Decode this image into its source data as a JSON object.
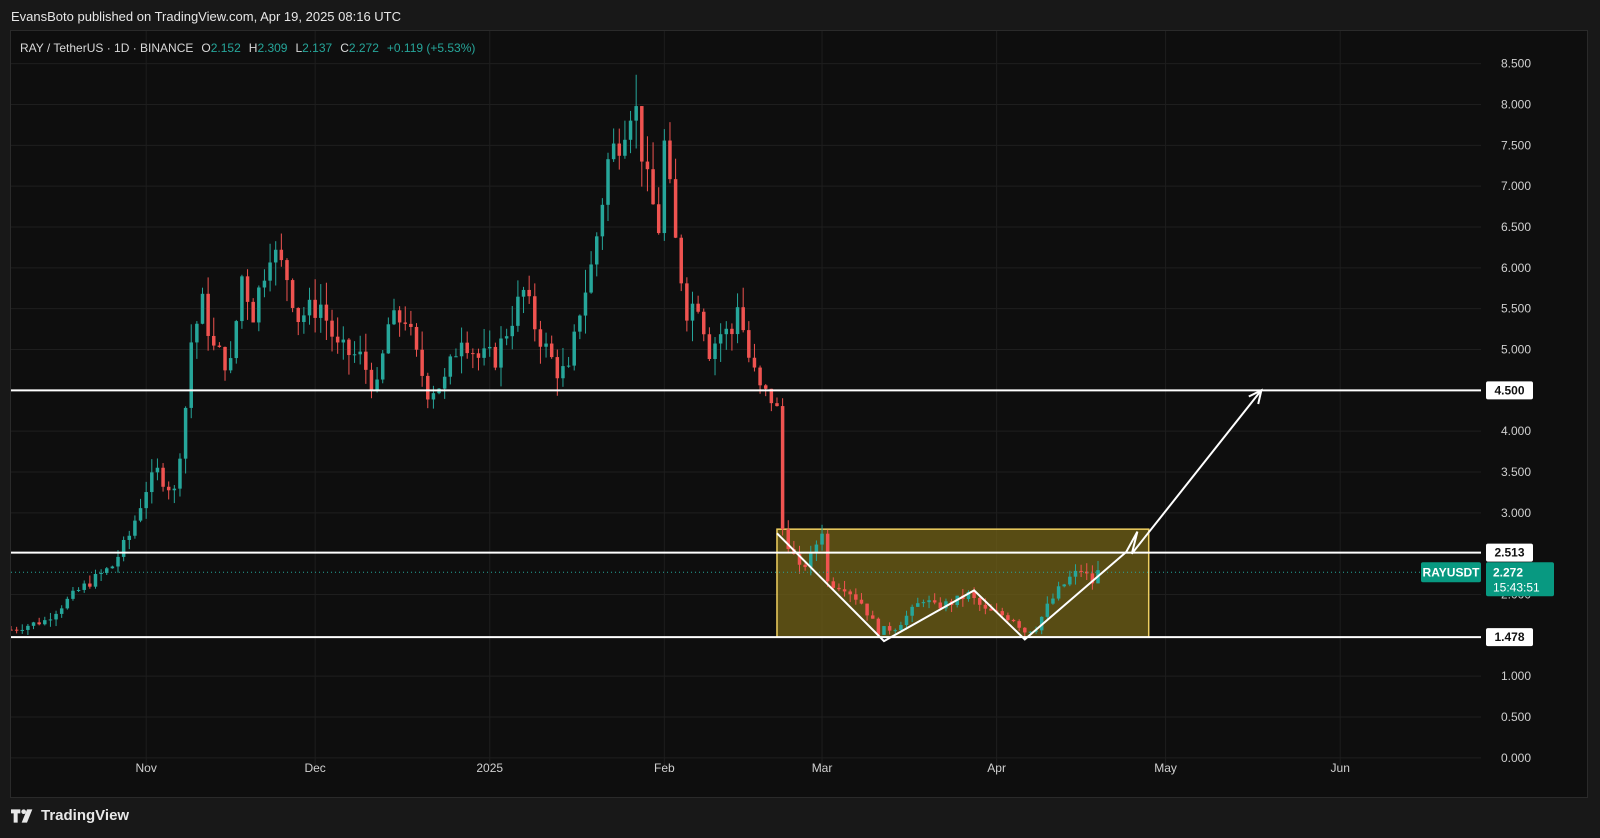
{
  "header": {
    "publish_line": "EvansBoto published on TradingView.com, Apr 19, 2025 08:16 UTC"
  },
  "footer": {
    "brand": "TradingView"
  },
  "colors": {
    "up": "#26a69a",
    "down": "#ef5350",
    "zone_fill": "#6b5d16",
    "zone_border": "#f0d060",
    "grid": "#1e1e1e",
    "level_line": "#ffffff",
    "price_tag": "#089981"
  },
  "chart_data": {
    "type": "candlestick",
    "symbol_line": {
      "name": "RAY / TetherUS · 1D · BINANCE",
      "o_label": "O",
      "o_value": "2.152",
      "h_label": "H",
      "h_value": "2.309",
      "l_label": "L",
      "l_value": "2.137",
      "c_label": "C",
      "c_value": "2.272",
      "change": "+0.119 (+5.53%)"
    },
    "y_ticks": [
      "8.500",
      "8.000",
      "7.500",
      "7.000",
      "6.500",
      "6.000",
      "5.500",
      "5.000",
      "4.000",
      "3.500",
      "3.000",
      "2.000",
      "1.000",
      "0.500",
      "0.000"
    ],
    "ylim": [
      -0.1,
      8.9
    ],
    "x_ticks": [
      {
        "label": "Nov",
        "date": "2024-11-01"
      },
      {
        "label": "Dec",
        "date": "2024-12-01"
      },
      {
        "label": "2025",
        "date": "2025-01-01"
      },
      {
        "label": "Feb",
        "date": "2025-02-01"
      },
      {
        "label": "Mar",
        "date": "2025-03-01"
      },
      {
        "label": "Apr",
        "date": "2025-04-01"
      },
      {
        "label": "May",
        "date": "2025-05-01"
      },
      {
        "label": "Jun",
        "date": "2025-06-01"
      }
    ],
    "xlim": [
      "2024-10-08",
      "2025-06-26"
    ],
    "horizontal_levels": [
      {
        "value": 4.5,
        "label": "4.500"
      },
      {
        "value": 2.513,
        "label": "2.513"
      },
      {
        "value": 1.478,
        "label": "1.478"
      }
    ],
    "current_price": {
      "symbol": "RAYUSDT",
      "value": 2.272,
      "label": "2.272",
      "countdown": "15:43:51"
    },
    "zone": {
      "start": "2025-02-21",
      "end": "2025-04-28",
      "low": 1.478,
      "high": 2.8
    },
    "path_drawing": [
      {
        "date": "2025-02-21",
        "price": 2.75
      },
      {
        "date": "2025-03-12",
        "price": 1.43
      },
      {
        "date": "2025-03-28",
        "price": 2.05
      },
      {
        "date": "2025-04-06",
        "price": 1.45
      },
      {
        "date": "2025-04-24",
        "price": 2.52
      },
      {
        "date": "2025-04-26",
        "price": 2.77
      },
      {
        "date": "2025-04-25",
        "price": 2.5
      },
      {
        "date": "2025-05-18",
        "price": 4.5
      }
    ],
    "anchors": [
      {
        "date": "2024-10-08",
        "price": 1.57
      },
      {
        "date": "2024-10-14",
        "price": 1.68
      },
      {
        "date": "2024-10-20",
        "price": 2.05
      },
      {
        "date": "2024-10-26",
        "price": 2.35
      },
      {
        "date": "2024-10-29",
        "price": 2.72
      },
      {
        "date": "2024-11-01",
        "price": 3.3
      },
      {
        "date": "2024-11-03",
        "price": 3.5
      },
      {
        "date": "2024-11-06",
        "price": 3.25
      },
      {
        "date": "2024-11-08",
        "price": 4.3
      },
      {
        "date": "2024-11-09",
        "price": 5.1
      },
      {
        "date": "2024-11-11",
        "price": 5.55
      },
      {
        "date": "2024-11-13",
        "price": 5.0
      },
      {
        "date": "2024-11-16",
        "price": 4.8
      },
      {
        "date": "2024-11-18",
        "price": 5.9
      },
      {
        "date": "2024-11-20",
        "price": 5.45
      },
      {
        "date": "2024-11-23",
        "price": 6.25
      },
      {
        "date": "2024-11-26",
        "price": 5.9
      },
      {
        "date": "2024-11-28",
        "price": 5.4
      },
      {
        "date": "2024-12-02",
        "price": 5.55
      },
      {
        "date": "2024-12-05",
        "price": 5.0
      },
      {
        "date": "2024-12-09",
        "price": 4.9
      },
      {
        "date": "2024-12-12",
        "price": 4.5
      },
      {
        "date": "2024-12-14",
        "price": 5.3
      },
      {
        "date": "2024-12-17",
        "price": 5.4
      },
      {
        "date": "2024-12-19",
        "price": 4.9
      },
      {
        "date": "2024-12-21",
        "price": 4.5
      },
      {
        "date": "2024-12-24",
        "price": 4.6
      },
      {
        "date": "2024-12-27",
        "price": 5.2
      },
      {
        "date": "2024-12-30",
        "price": 4.9
      },
      {
        "date": "2025-01-02",
        "price": 4.9
      },
      {
        "date": "2025-01-05",
        "price": 5.4
      },
      {
        "date": "2025-01-07",
        "price": 5.7
      },
      {
        "date": "2025-01-09",
        "price": 5.3
      },
      {
        "date": "2025-01-11",
        "price": 5.0
      },
      {
        "date": "2025-01-13",
        "price": 4.75
      },
      {
        "date": "2025-01-15",
        "price": 4.7
      },
      {
        "date": "2025-01-17",
        "price": 5.5
      },
      {
        "date": "2025-01-19",
        "price": 6.0
      },
      {
        "date": "2025-01-20",
        "price": 6.4
      },
      {
        "date": "2025-01-22",
        "price": 7.3
      },
      {
        "date": "2025-01-24",
        "price": 7.6
      },
      {
        "date": "2025-01-26",
        "price": 8.0
      },
      {
        "date": "2025-01-27",
        "price": 7.9
      },
      {
        "date": "2025-01-29",
        "price": 7.0
      },
      {
        "date": "2025-01-31",
        "price": 6.5
      },
      {
        "date": "2025-02-01",
        "price": 7.5
      },
      {
        "date": "2025-02-03",
        "price": 6.3
      },
      {
        "date": "2025-02-05",
        "price": 5.5
      },
      {
        "date": "2025-02-07",
        "price": 5.6
      },
      {
        "date": "2025-02-09",
        "price": 5.0
      },
      {
        "date": "2025-02-11",
        "price": 5.2
      },
      {
        "date": "2025-02-13",
        "price": 5.2
      },
      {
        "date": "2025-02-14",
        "price": 5.6
      },
      {
        "date": "2025-02-16",
        "price": 4.9
      },
      {
        "date": "2025-02-18",
        "price": 4.5
      },
      {
        "date": "2025-02-20",
        "price": 4.4
      },
      {
        "date": "2025-02-21",
        "price": 4.25
      },
      {
        "date": "2025-02-22",
        "price": 2.8
      },
      {
        "date": "2025-02-25",
        "price": 2.3
      },
      {
        "date": "2025-02-27",
        "price": 2.45
      },
      {
        "date": "2025-03-01",
        "price": 2.8
      },
      {
        "date": "2025-03-02",
        "price": 2.15
      },
      {
        "date": "2025-03-05",
        "price": 2.1
      },
      {
        "date": "2025-03-08",
        "price": 1.9
      },
      {
        "date": "2025-03-11",
        "price": 1.55
      },
      {
        "date": "2025-03-14",
        "price": 1.6
      },
      {
        "date": "2025-03-17",
        "price": 1.8
      },
      {
        "date": "2025-03-19",
        "price": 1.95
      },
      {
        "date": "2025-03-21",
        "price": 1.85
      },
      {
        "date": "2025-03-24",
        "price": 1.9
      },
      {
        "date": "2025-03-27",
        "price": 2.0
      },
      {
        "date": "2025-03-30",
        "price": 1.8
      },
      {
        "date": "2025-04-02",
        "price": 1.75
      },
      {
        "date": "2025-04-04",
        "price": 1.7
      },
      {
        "date": "2025-04-06",
        "price": 1.55
      },
      {
        "date": "2025-04-08",
        "price": 1.6
      },
      {
        "date": "2025-04-10",
        "price": 1.85
      },
      {
        "date": "2025-04-12",
        "price": 2.05
      },
      {
        "date": "2025-04-14",
        "price": 2.2
      },
      {
        "date": "2025-04-16",
        "price": 2.3
      },
      {
        "date": "2025-04-18",
        "price": 2.15
      },
      {
        "date": "2025-04-19",
        "price": 2.27
      }
    ]
  }
}
